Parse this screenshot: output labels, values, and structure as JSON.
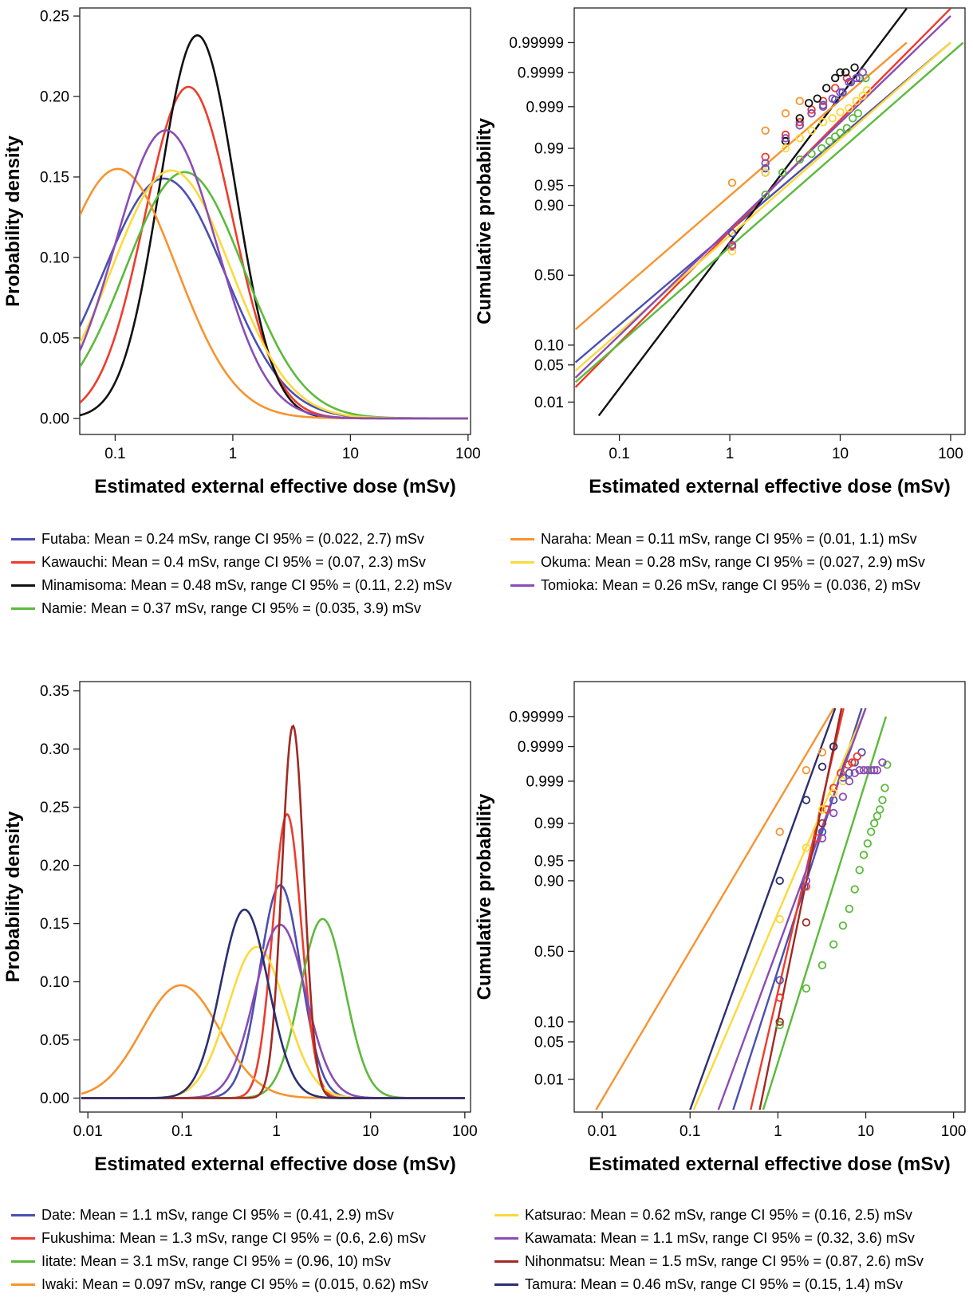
{
  "colors": {
    "blue": "#4a50b0",
    "red": "#ee3b2c",
    "black": "#111111",
    "green": "#5cba3c",
    "orange": "#f7932e",
    "yellow": "#fcd93c",
    "purple": "#8a4cb5",
    "darkred": "#a02a22",
    "navy": "#2b2f6e",
    "darkgreen": "#21a03a"
  },
  "chart_data": [
    {
      "type": "line",
      "title": "",
      "xlabel": "Estimated external effective dose (mSv)",
      "ylabel": "Probability density",
      "xscale": "log",
      "xlim": [
        0.05,
        100
      ],
      "ylim": [
        0,
        0.25
      ],
      "xticks": [
        "0.1",
        "1",
        "10",
        "100"
      ],
      "yticks": [
        "0.00",
        "0.05",
        "0.10",
        "0.15",
        "0.20",
        "0.25"
      ],
      "series": [
        {
          "name": "Futaba",
          "color": "blue",
          "mode": 0.26,
          "peak": 0.149,
          "sigma": 1.19
        },
        {
          "name": "Kawauchi",
          "color": "red",
          "mode": 0.42,
          "peak": 0.206,
          "sigma": 0.86
        },
        {
          "name": "Minamisoma",
          "color": "black",
          "mode": 0.5,
          "peak": 0.238,
          "sigma": 0.74
        },
        {
          "name": "Namie",
          "color": "green",
          "mode": 0.39,
          "peak": 0.153,
          "sigma": 1.16
        },
        {
          "name": "Naraha",
          "color": "orange",
          "mode": 0.105,
          "peak": 0.155,
          "sigma": 1.15
        },
        {
          "name": "Okuma",
          "color": "yellow",
          "mode": 0.3,
          "peak": 0.154,
          "sigma": 1.16
        },
        {
          "name": "Tomioka",
          "color": "purple",
          "mode": 0.27,
          "peak": 0.179,
          "sigma": 0.99
        }
      ]
    },
    {
      "type": "scatter",
      "title": "",
      "xlabel": "Estimated external effective dose (mSv)",
      "ylabel": "Cumulative probability",
      "xscale": "log",
      "yscale": "probability",
      "xlim": [
        0.04,
        130
      ],
      "xticks": [
        "0.1",
        "1",
        "10",
        "100"
      ],
      "yticks": [
        "0.01",
        "0.05",
        "0.10",
        "0.50",
        "0.90",
        "0.95",
        "0.99",
        "0.999",
        "0.9999",
        "0.99999"
      ],
      "series": [
        {
          "name": "Futaba",
          "color": "blue",
          "fit": [
            [
              0.04,
              0.055
            ],
            [
              100,
              0.99999
            ]
          ],
          "points": [
            [
              1.05,
              0.78
            ],
            [
              2.1,
              0.975
            ],
            [
              3.2,
              0.993
            ],
            [
              4.3,
              0.997
            ],
            [
              5.5,
              0.9985
            ],
            [
              7.0,
              0.9991
            ],
            [
              9.0,
              0.99935
            ],
            [
              10.5,
              0.9996
            ],
            [
              12.5,
              0.9998
            ],
            [
              15.0,
              0.99985
            ]
          ]
        },
        {
          "name": "Kawauchi",
          "color": "red",
          "fit": [
            [
              0.04,
              0.02
            ],
            [
              100,
              0.9999995
            ]
          ],
          "points": [
            [
              1.05,
              0.7
            ],
            [
              2.1,
              0.985
            ],
            [
              3.2,
              0.995
            ],
            [
              4.3,
              0.9975
            ],
            [
              5.5,
              0.9988
            ],
            [
              7.0,
              0.9993
            ],
            [
              9.0,
              0.9997
            ],
            [
              11.5,
              0.99985
            ]
          ]
        },
        {
          "name": "Minamisoma",
          "color": "black",
          "fit": [
            [
              0.065,
              0.005
            ],
            [
              40,
              0.9999995
            ]
          ],
          "points": [
            [
              2.1,
              0.97
            ],
            [
              3.2,
              0.993
            ],
            [
              4.3,
              0.998
            ],
            [
              5.2,
              0.9992
            ],
            [
              6.2,
              0.9994
            ],
            [
              7.5,
              0.9997
            ],
            [
              9.0,
              0.99985
            ],
            [
              10.0,
              0.9999
            ],
            [
              11.2,
              0.9999
            ],
            [
              13.5,
              0.99993
            ]
          ]
        },
        {
          "name": "Namie",
          "color": "green",
          "fit": [
            [
              0.04,
              0.025
            ],
            [
              130,
              0.99999
            ]
          ],
          "points": [
            [
              2.1,
              0.93
            ],
            [
              3.0,
              0.97
            ],
            [
              4.3,
              0.983
            ],
            [
              5.5,
              0.987
            ],
            [
              6.8,
              0.99
            ],
            [
              8.0,
              0.993
            ],
            [
              9.0,
              0.9945
            ],
            [
              10.0,
              0.9955
            ],
            [
              11.5,
              0.9965
            ],
            [
              13.0,
              0.998
            ],
            [
              14.5,
              0.9985
            ],
            [
              17.0,
              0.99985
            ]
          ]
        },
        {
          "name": "Naraha",
          "color": "orange",
          "fit": [
            [
              0.04,
              0.16
            ],
            [
              40,
              0.99999
            ]
          ],
          "points": [
            [
              1.05,
              0.955
            ],
            [
              2.1,
              0.996
            ],
            [
              3.2,
              0.9985
            ],
            [
              4.3,
              0.9993
            ]
          ]
        },
        {
          "name": "Okuma",
          "color": "yellow",
          "fit": [
            [
              0.04,
              0.04
            ],
            [
              100,
              0.99999
            ]
          ],
          "points": [
            [
              1.05,
              0.67
            ],
            [
              2.1,
              0.97
            ],
            [
              3.2,
              0.99
            ],
            [
              4.3,
              0.994
            ],
            [
              5.5,
              0.996
            ],
            [
              7.0,
              0.9975
            ],
            [
              8.5,
              0.998
            ],
            [
              10.0,
              0.9986
            ],
            [
              12.0,
              0.9989
            ],
            [
              14.0,
              0.9993
            ],
            [
              16.0,
              0.9995
            ],
            [
              17.5,
              0.99965
            ]
          ]
        },
        {
          "name": "Tomioka",
          "color": "purple",
          "fit": [
            [
              0.04,
              0.03
            ],
            [
              100,
              0.999999
            ]
          ],
          "points": [
            [
              1.05,
              0.71
            ],
            [
              2.1,
              0.98
            ],
            [
              3.2,
              0.994
            ],
            [
              4.3,
              0.997
            ],
            [
              5.5,
              0.9985
            ],
            [
              7.0,
              0.999
            ],
            [
              8.5,
              0.9994
            ],
            [
              10.0,
              0.9996
            ],
            [
              12.0,
              0.9998
            ],
            [
              14.0,
              0.99985
            ],
            [
              16.0,
              0.9999
            ]
          ]
        }
      ]
    },
    {
      "type": "line",
      "title": "",
      "xlabel": "Estimated external effective dose (mSv)",
      "ylabel": "Probability density",
      "xscale": "log",
      "xlim": [
        0.0085,
        100
      ],
      "ylim": [
        0,
        0.35
      ],
      "xticks": [
        "0.01",
        "0.1",
        "1",
        "10",
        "100"
      ],
      "yticks": [
        "0.00",
        "0.05",
        "0.10",
        "0.15",
        "0.20",
        "0.25",
        "0.30",
        "0.35"
      ],
      "series": [
        {
          "name": "Date",
          "color": "blue",
          "mode": 1.1,
          "peak": 0.183,
          "sigma": 0.5
        },
        {
          "name": "Fukushima",
          "color": "red",
          "mode": 1.3,
          "peak": 0.244,
          "sigma": 0.35
        },
        {
          "name": "Iitate",
          "color": "green",
          "mode": 3.1,
          "peak": 0.154,
          "sigma": 0.55
        },
        {
          "name": "Iwaki",
          "color": "orange",
          "mode": 0.097,
          "peak": 0.097,
          "sigma": 0.95
        },
        {
          "name": "Katsurao",
          "color": "yellow",
          "mode": 0.62,
          "peak": 0.13,
          "sigma": 0.7
        },
        {
          "name": "Kawamata",
          "color": "purple",
          "mode": 1.1,
          "peak": 0.149,
          "sigma": 0.62
        },
        {
          "name": "Nihonmatsu",
          "color": "darkred",
          "mode": 1.5,
          "peak": 0.32,
          "sigma": 0.27
        },
        {
          "name": "Tamura",
          "color": "navy",
          "mode": 0.46,
          "peak": 0.162,
          "sigma": 0.58
        }
      ]
    },
    {
      "type": "scatter",
      "title": "",
      "xlabel": "Estimated external effective dose (mSv)",
      "ylabel": "Cumulative probability",
      "xscale": "log",
      "yscale": "probability",
      "xlim": [
        0.0045,
        130
      ],
      "xticks": [
        "0.01",
        "0.1",
        "1",
        "10",
        "100"
      ],
      "yticks": [
        "0.01",
        "0.05",
        "0.10",
        "0.50",
        "0.90",
        "0.95",
        "0.99",
        "0.999",
        "0.9999",
        "0.99999"
      ],
      "series": [
        {
          "name": "Date",
          "color": "blue",
          "fit": [
            [
              0.31,
              0.002
            ],
            [
              9,
              0.999995
            ]
          ],
          "points": [
            [
              1.05,
              0.3
            ],
            [
              2.0,
              0.88
            ],
            [
              3.2,
              0.985
            ],
            [
              4.3,
              0.997
            ],
            [
              5.5,
              0.9992
            ],
            [
              6.5,
              0.9994
            ],
            [
              7.5,
              0.9997
            ],
            [
              9.0,
              0.99985
            ]
          ]
        },
        {
          "name": "Fukushima",
          "color": "red",
          "fit": [
            [
              0.49,
              0.002
            ],
            [
              5.6,
              0.999995
            ]
          ],
          "points": [
            [
              1.05,
              0.2
            ],
            [
              2.1,
              0.88
            ],
            [
              2.8,
              0.98
            ],
            [
              3.6,
              0.995
            ],
            [
              4.3,
              0.9985
            ],
            [
              5.2,
              0.9994
            ],
            [
              6.3,
              0.99965
            ],
            [
              7.0,
              0.9997
            ],
            [
              8.0,
              0.9998
            ]
          ]
        },
        {
          "name": "Iitate",
          "color": "green",
          "fit": [
            [
              0.68,
              0.002
            ],
            [
              17,
              0.99999
            ]
          ],
          "points": [
            [
              1.05,
              0.09
            ],
            [
              2.1,
              0.25
            ],
            [
              3.2,
              0.4
            ],
            [
              4.3,
              0.55
            ],
            [
              5.5,
              0.68
            ],
            [
              6.5,
              0.78
            ],
            [
              7.5,
              0.87
            ],
            [
              8.5,
              0.93
            ],
            [
              9.5,
              0.96
            ],
            [
              10.5,
              0.975
            ],
            [
              11.5,
              0.985
            ],
            [
              12.5,
              0.99
            ],
            [
              13.5,
              0.993
            ],
            [
              14.5,
              0.995
            ],
            [
              15.5,
              0.997
            ],
            [
              16.5,
              0.9985
            ],
            [
              17.5,
              0.99965
            ]
          ]
        },
        {
          "name": "Iwaki",
          "color": "orange",
          "fit": [
            [
              0.0085,
              0.002
            ],
            [
              4.3,
              0.999995
            ]
          ],
          "points": [
            [
              1.05,
              0.985
            ],
            [
              2.1,
              0.9995
            ],
            [
              3.2,
              0.99985
            ],
            [
              4.3,
              0.9999
            ]
          ]
        },
        {
          "name": "Katsurao",
          "color": "yellow",
          "fit": [
            [
              0.11,
              0.002
            ],
            [
              10,
              0.999995
            ]
          ],
          "points": [
            [
              1.05,
              0.72
            ],
            [
              2.1,
              0.97
            ],
            [
              3.2,
              0.995
            ],
            [
              4.3,
              0.998
            ],
            [
              5.5,
              0.999
            ]
          ]
        },
        {
          "name": "Kawamata",
          "color": "purple",
          "fit": [
            [
              0.21,
              0.002
            ],
            [
              10,
              0.999995
            ]
          ],
          "points": [
            [
              2.1,
              0.9
            ],
            [
              3.2,
              0.98
            ],
            [
              4.3,
              0.994
            ],
            [
              5.5,
              0.9975
            ],
            [
              6.5,
              0.999
            ],
            [
              7.5,
              0.9994
            ],
            [
              8.5,
              0.9995
            ],
            [
              9.5,
              0.9995
            ],
            [
              10.5,
              0.9995
            ],
            [
              11.5,
              0.9995
            ],
            [
              12.5,
              0.9995
            ],
            [
              13.5,
              0.9995
            ],
            [
              15.5,
              0.9997
            ]
          ]
        },
        {
          "name": "Nihonmatsu",
          "color": "darkred",
          "fit": [
            [
              0.62,
              0.002
            ],
            [
              5.3,
              0.999995
            ]
          ],
          "points": [
            [
              1.05,
              0.1
            ],
            [
              2.1,
              0.7
            ],
            [
              3.2,
              0.99
            ],
            [
              4.3,
              0.9999
            ]
          ]
        },
        {
          "name": "Tamura",
          "color": "navy",
          "fit": [
            [
              0.1,
              0.002
            ],
            [
              4.5,
              0.999995
            ]
          ],
          "points": [
            [
              1.05,
              0.9
            ],
            [
              2.1,
              0.997
            ],
            [
              3.2,
              0.9996
            ],
            [
              4.3,
              0.9999
            ]
          ]
        }
      ]
    }
  ],
  "legends": {
    "top_left": [
      {
        "color": "blue",
        "text": "Futaba: Mean = 0.24 mSv, range CI 95% = (0.022, 2.7) mSv"
      },
      {
        "color": "red",
        "text": "Kawauchi: Mean = 0.4 mSv, range CI 95% = (0.07, 2.3) mSv"
      },
      {
        "color": "black",
        "text": "Minamisoma: Mean = 0.48 mSv, range CI 95% = (0.11, 2.2) mSv"
      },
      {
        "color": "green",
        "text": "Namie: Mean = 0.37 mSv, range CI 95% = (0.035, 3.9) mSv"
      }
    ],
    "top_right": [
      {
        "color": "orange",
        "text": "Naraha: Mean = 0.11 mSv, range CI 95% = (0.01, 1.1) mSv"
      },
      {
        "color": "yellow",
        "text": "Okuma: Mean = 0.28 mSv, range CI 95% = (0.027, 2.9) mSv"
      },
      {
        "color": "purple",
        "text": "Tomioka: Mean = 0.26 mSv, range CI 95% = (0.036, 2) mSv"
      }
    ],
    "bottom_left": [
      {
        "color": "blue",
        "text": "Date: Mean = 1.1 mSv, range CI 95% = (0.41, 2.9) mSv"
      },
      {
        "color": "red",
        "text": "Fukushima: Mean = 1.3 mSv, range CI 95% = (0.6, 2.6) mSv"
      },
      {
        "color": "green",
        "text": "Iitate: Mean = 3.1 mSv, range CI 95% = (0.96, 10) mSv"
      },
      {
        "color": "orange",
        "text": "Iwaki: Mean = 0.097 mSv, range CI 95% = (0.015, 0.62) mSv"
      }
    ],
    "bottom_right": [
      {
        "color": "yellow",
        "text": "Katsurao: Mean = 0.62 mSv, range CI 95% = (0.16, 2.5) mSv"
      },
      {
        "color": "purple",
        "text": "Kawamata: Mean = 1.1 mSv, range CI 95% = (0.32, 3.6) mSv"
      },
      {
        "color": "darkred",
        "text": "Nihonmatsu: Mean = 1.5 mSv, range CI 95% = (0.87, 2.6) mSv"
      },
      {
        "color": "navy",
        "text": "Tamura: Mean = 0.46 mSv, range CI 95% = (0.15, 1.4) mSv"
      }
    ]
  }
}
